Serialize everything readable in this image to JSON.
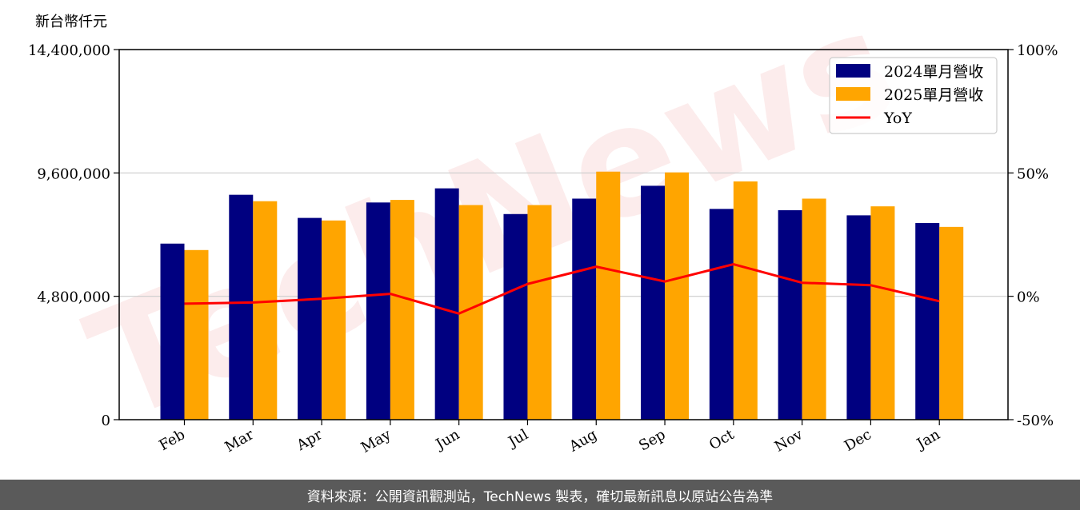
{
  "chart_data": {
    "type": "bar",
    "y_unit_label": "新台幣仟元",
    "categories": [
      "Feb",
      "Mar",
      "Apr",
      "May",
      "Jun",
      "Jul",
      "Aug",
      "Sep",
      "Oct",
      "Nov",
      "Dec",
      "Jan"
    ],
    "series": [
      {
        "name": "2024單月營收",
        "type": "bar",
        "axis": "left",
        "color": "#000080",
        "values": [
          6850000,
          8750000,
          7850000,
          8450000,
          9000000,
          8000000,
          8600000,
          9100000,
          8200000,
          8150000,
          7950000,
          7650000
        ]
      },
      {
        "name": "2025單月營收",
        "type": "bar",
        "axis": "left",
        "color": "#ffa500",
        "values": [
          6600000,
          8500000,
          7750000,
          8550000,
          8350000,
          8350000,
          9650000,
          9620000,
          9270000,
          8600000,
          8300000,
          7500000
        ]
      },
      {
        "name": "YoY",
        "type": "line",
        "axis": "right",
        "color": "#ff0000",
        "values": [
          -3,
          -2.5,
          -1,
          1,
          -7,
          5,
          12,
          6,
          13,
          5.5,
          4.5,
          -2
        ]
      }
    ],
    "left_axis": {
      "min": 0,
      "max": 14400000,
      "ticks": [
        0,
        4800000,
        9600000,
        14400000
      ],
      "tick_labels": [
        "0",
        "4,800,000",
        "9,600,000",
        "14,400,000"
      ]
    },
    "right_axis": {
      "min": -50,
      "max": 100,
      "ticks": [
        -50,
        0,
        50,
        100
      ],
      "tick_labels": [
        "-50%",
        "0%",
        "50%",
        "100%"
      ]
    },
    "grid": "horizontal",
    "legend_position": "top-right"
  },
  "watermark": "TechNews",
  "footer": {
    "source_text": "資料來源：公開資訊觀測站，TechNews 製表，確切最新訊息以原站公告為準"
  }
}
